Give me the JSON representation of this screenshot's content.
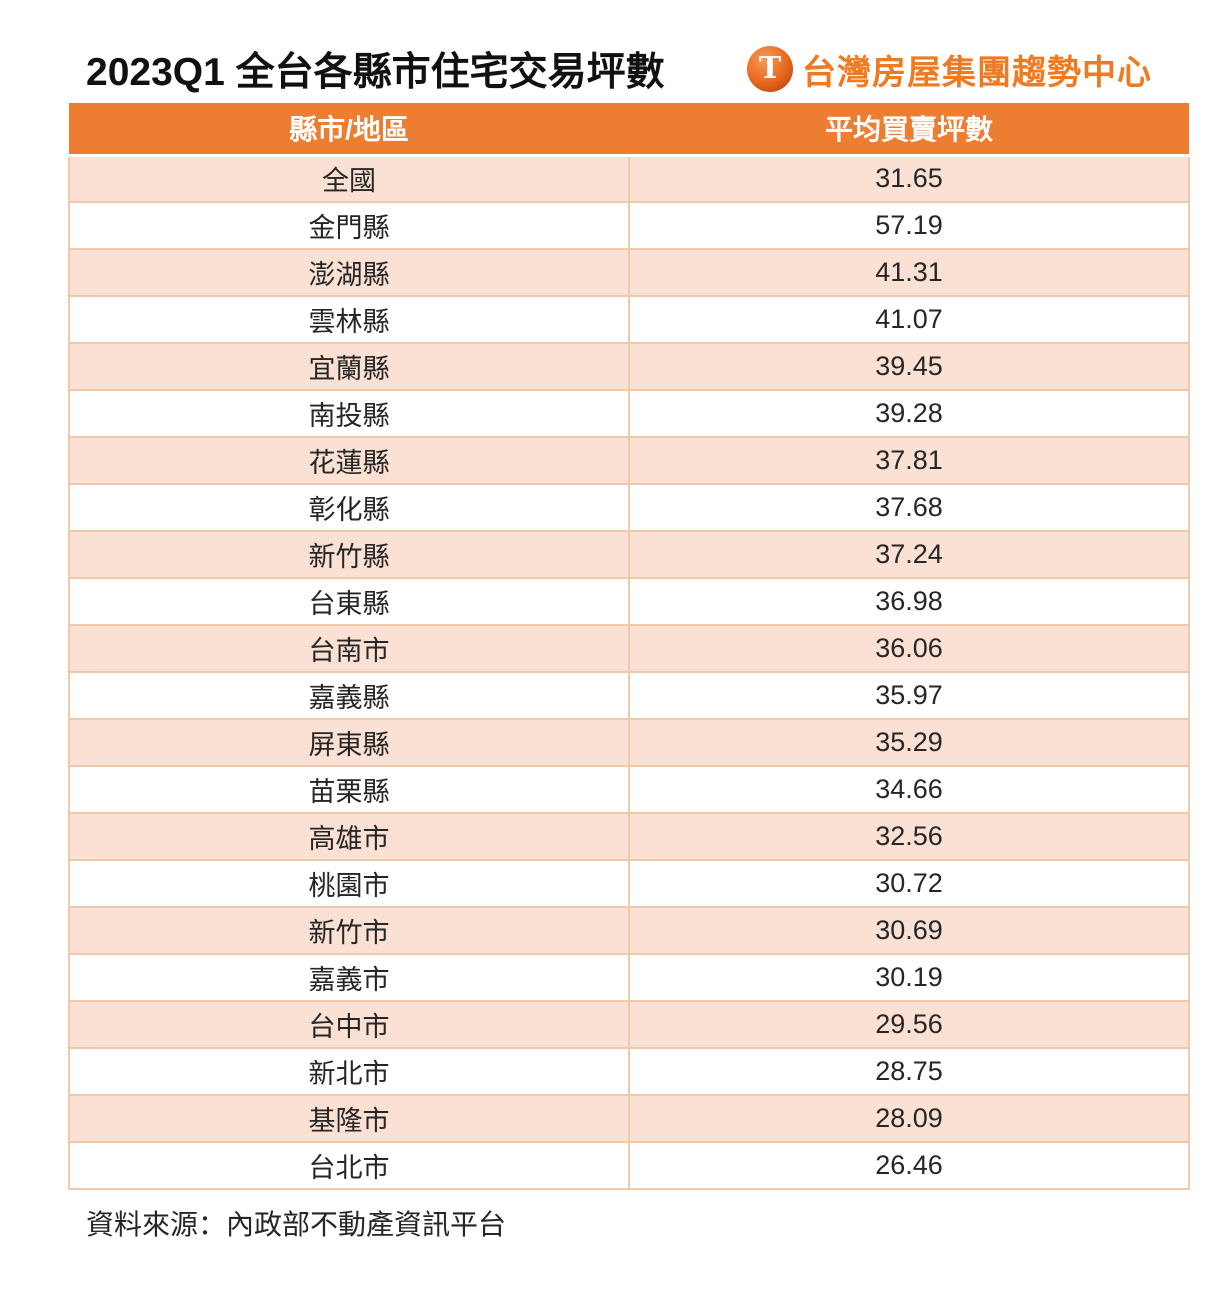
{
  "title": "2023Q1 全台各縣市住宅交易坪數",
  "logo": {
    "icon": "T",
    "text": "台灣房屋集團趨勢中心"
  },
  "table": {
    "columns": [
      "縣市/地區",
      "平均買賣坪數"
    ],
    "rows": [
      {
        "region": "全國",
        "value": "31.65"
      },
      {
        "region": "金門縣",
        "value": "57.19"
      },
      {
        "region": "澎湖縣",
        "value": "41.31"
      },
      {
        "region": "雲林縣",
        "value": "41.07"
      },
      {
        "region": "宜蘭縣",
        "value": "39.45"
      },
      {
        "region": "南投縣",
        "value": "39.28"
      },
      {
        "region": "花蓮縣",
        "value": "37.81"
      },
      {
        "region": "彰化縣",
        "value": "37.68"
      },
      {
        "region": "新竹縣",
        "value": "37.24"
      },
      {
        "region": "台東縣",
        "value": "36.98"
      },
      {
        "region": "台南市",
        "value": "36.06"
      },
      {
        "region": "嘉義縣",
        "value": "35.97"
      },
      {
        "region": "屏東縣",
        "value": "35.29"
      },
      {
        "region": "苗栗縣",
        "value": "34.66"
      },
      {
        "region": "高雄市",
        "value": "32.56"
      },
      {
        "region": "桃園市",
        "value": "30.72"
      },
      {
        "region": "新竹市",
        "value": "30.69"
      },
      {
        "region": "嘉義市",
        "value": "30.19"
      },
      {
        "region": "台中市",
        "value": "29.56"
      },
      {
        "region": "新北市",
        "value": "28.75"
      },
      {
        "region": "基隆市",
        "value": "28.09"
      },
      {
        "region": "台北市",
        "value": "26.46"
      }
    ]
  },
  "source": "資料來源：內政部不動產資訊平台",
  "colors": {
    "header_bg": "#ED7D31",
    "row_alt_bg": "#FBE1D3",
    "grid_line": "#EFC9AA",
    "logo_orange": "#EE7A21"
  },
  "chart_data": {
    "type": "table",
    "title": "2023Q1 全台各縣市住宅交易坪數",
    "columns": [
      "縣市/地區",
      "平均買賣坪數"
    ],
    "rows": [
      [
        "全國",
        31.65
      ],
      [
        "金門縣",
        57.19
      ],
      [
        "澎湖縣",
        41.31
      ],
      [
        "雲林縣",
        41.07
      ],
      [
        "宜蘭縣",
        39.45
      ],
      [
        "南投縣",
        39.28
      ],
      [
        "花蓮縣",
        37.81
      ],
      [
        "彰化縣",
        37.68
      ],
      [
        "新竹縣",
        37.24
      ],
      [
        "台東縣",
        36.98
      ],
      [
        "台南市",
        36.06
      ],
      [
        "嘉義縣",
        35.97
      ],
      [
        "屏東縣",
        35.29
      ],
      [
        "苗栗縣",
        34.66
      ],
      [
        "高雄市",
        32.56
      ],
      [
        "桃園市",
        30.72
      ],
      [
        "新竹市",
        30.69
      ],
      [
        "嘉義市",
        30.19
      ],
      [
        "台中市",
        29.56
      ],
      [
        "新北市",
        28.75
      ],
      [
        "基隆市",
        28.09
      ],
      [
        "台北市",
        26.46
      ]
    ],
    "source": "資料來源：內政部不動產資訊平台"
  }
}
